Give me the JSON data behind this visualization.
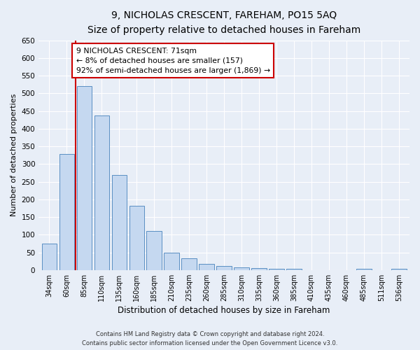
{
  "title1": "9, NICHOLAS CRESCENT, FAREHAM, PO15 5AQ",
  "title2": "Size of property relative to detached houses in Fareham",
  "xlabel": "Distribution of detached houses by size in Fareham",
  "ylabel": "Number of detached properties",
  "categories": [
    "34sqm",
    "60sqm",
    "85sqm",
    "110sqm",
    "135sqm",
    "160sqm",
    "185sqm",
    "210sqm",
    "235sqm",
    "260sqm",
    "285sqm",
    "310sqm",
    "335sqm",
    "360sqm",
    "385sqm",
    "410sqm",
    "435sqm",
    "460sqm",
    "485sqm",
    "511sqm",
    "536sqm"
  ],
  "values": [
    75,
    328,
    520,
    437,
    270,
    182,
    111,
    50,
    33,
    17,
    12,
    8,
    6,
    4,
    3,
    0,
    0,
    0,
    4,
    0,
    4
  ],
  "bar_color": "#c5d8f0",
  "bar_edge_color": "#5a8fc3",
  "vline_x": 1.5,
  "vline_color": "#cc0000",
  "annotation_text": "9 NICHOLAS CRESCENT: 71sqm\n← 8% of detached houses are smaller (157)\n92% of semi-detached houses are larger (1,869) →",
  "annotation_box_color": "#ffffff",
  "annotation_box_edge_color": "#cc0000",
  "ylim": [
    0,
    650
  ],
  "yticks": [
    0,
    50,
    100,
    150,
    200,
    250,
    300,
    350,
    400,
    450,
    500,
    550,
    600,
    650
  ],
  "footer1": "Contains HM Land Registry data © Crown copyright and database right 2024.",
  "footer2": "Contains public sector information licensed under the Open Government Licence v3.0.",
  "background_color": "#e8eef7",
  "plot_bg_color": "#e8eef7",
  "grid_color": "#ffffff",
  "title_fontsize": 10,
  "subtitle_fontsize": 9,
  "axis_label_fontsize": 8,
  "tick_fontsize": 7
}
